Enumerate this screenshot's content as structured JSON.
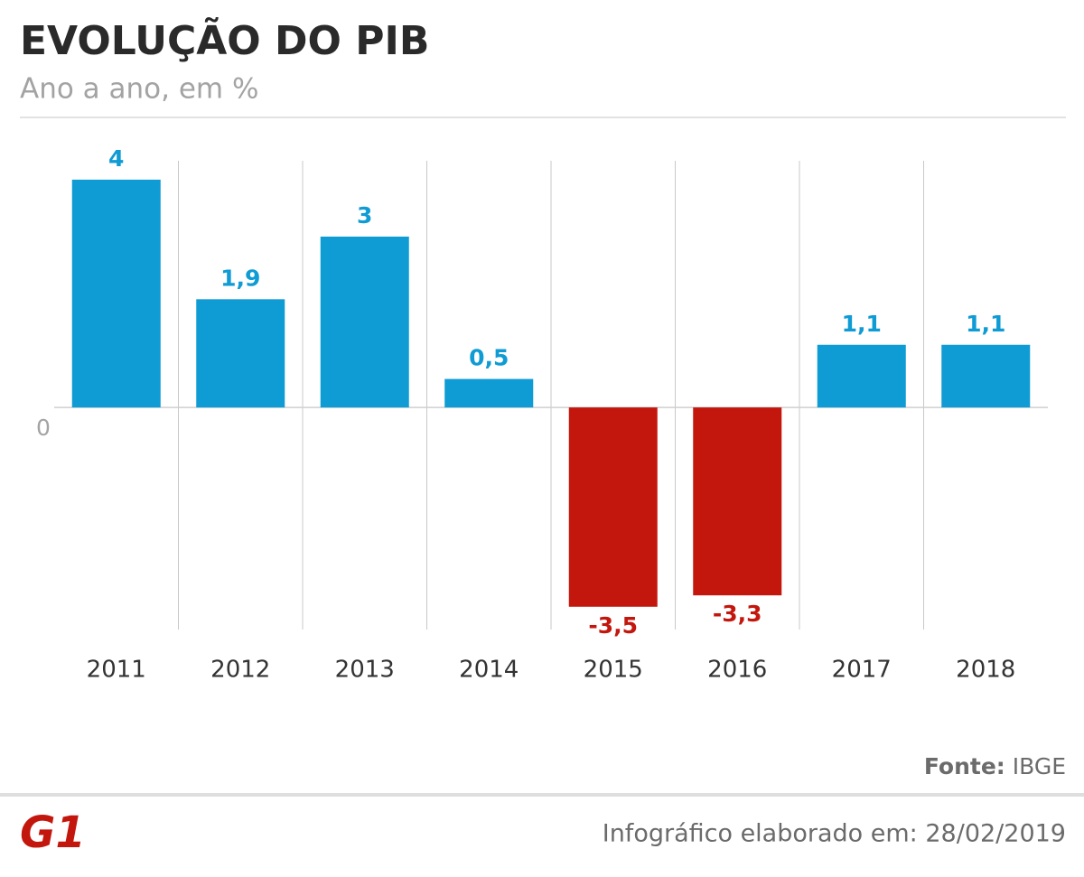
{
  "chart_data": {
    "type": "bar",
    "title": "EVOLUÇÃO DO PIB",
    "subtitle": "Ano a ano, em %",
    "categories": [
      "2011",
      "2012",
      "2013",
      "2014",
      "2015",
      "2016",
      "2017",
      "2018"
    ],
    "values": [
      4,
      1.9,
      3,
      0.5,
      -3.5,
      -3.3,
      1.1,
      1.1
    ],
    "value_labels": [
      "4",
      "1,9",
      "3",
      "0,5",
      "-3,5",
      "-3,3",
      "1,1",
      "1,1"
    ],
    "color": "#0f9bd4",
    "negative_color": "#c3170e",
    "ylim": [
      -3.9,
      4.3
    ],
    "yticks": [
      0
    ],
    "source_label": "Fonte:",
    "source": "IBGE",
    "logo": "G1",
    "footer": "Infográfico elaborado em: 28/02/2019"
  }
}
